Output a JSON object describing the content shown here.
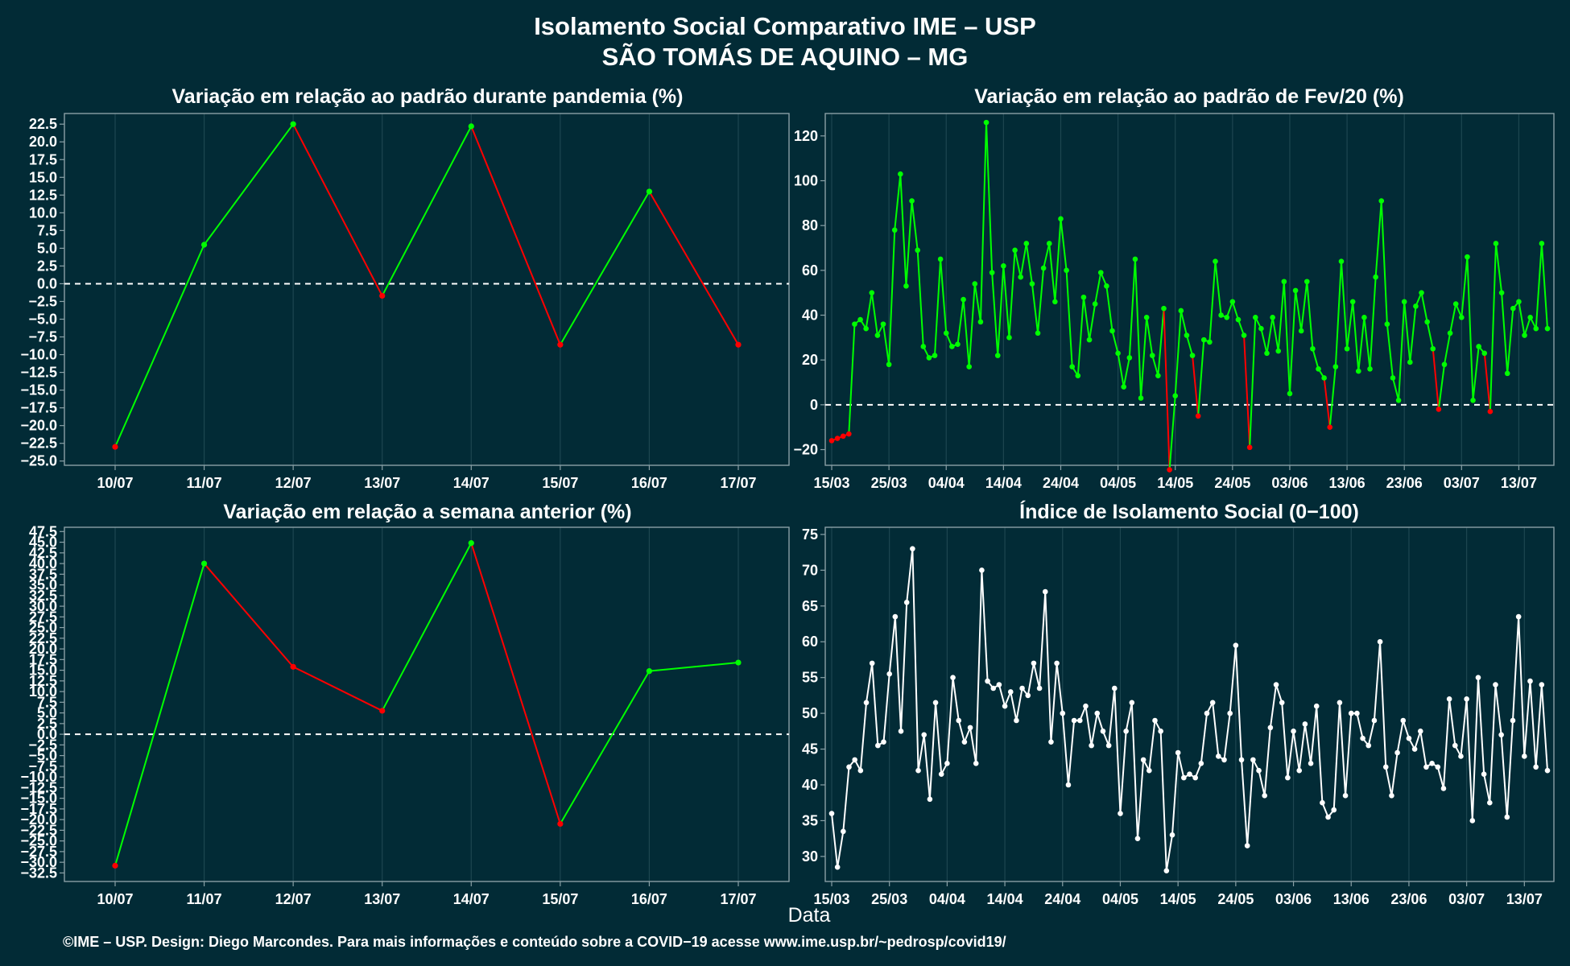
{
  "title_line1": "Isolamento Social Comparativo IME – USP",
  "title_line2": "SÃO TOMÁS DE AQUINO – MG",
  "xlabel": "Data",
  "footer": "©IME – USP. Design: Diego Marcondes. Para mais informações e conteúdo sobre a COVID−19 acesse www.ime.usp.br/~pedrosp/covid19/",
  "colors": {
    "background": "#022b36",
    "grid": "#1d4650",
    "axis": "#8aa0a6",
    "up": "#00ff00",
    "down": "#ff0000",
    "index": "#ffffff",
    "zero": "#ffffff"
  },
  "chart_data": [
    {
      "type": "line",
      "title": "Variação em relação ao padrão durante pandemia (%)",
      "categories": [
        "10/07",
        "11/07",
        "12/07",
        "13/07",
        "14/07",
        "15/07",
        "16/07",
        "17/07"
      ],
      "values": [
        -23.0,
        5.5,
        22.5,
        -1.7,
        22.2,
        -8.6,
        13.0,
        -8.6
      ],
      "ylim": [
        -25.6,
        24.0
      ],
      "yticks": [
        "−25.0",
        "−22.5",
        "−20.0",
        "−17.5",
        "−15.0",
        "−12.5",
        "−10.0",
        "−7.5",
        "−5.0",
        "−2.5",
        "0.0",
        "2.5",
        "5.0",
        "7.5",
        "10.0",
        "12.5",
        "15.0",
        "17.5",
        "20.0",
        "22.5"
      ],
      "coloring": "green when rising, red when falling",
      "zero_line": true
    },
    {
      "type": "line",
      "title": "Variação em relação ao padrão de Fev/20 (%)",
      "x_tick_labels": [
        "15/03",
        "25/03",
        "04/04",
        "14/04",
        "24/04",
        "04/05",
        "14/05",
        "24/05",
        "03/06",
        "13/06",
        "23/06",
        "03/07",
        "13/07"
      ],
      "x_start": "15/03",
      "values": [
        -16,
        -15,
        -14,
        -13,
        36,
        38,
        34,
        50,
        31,
        36,
        18,
        78,
        103,
        53,
        91,
        69,
        26,
        21,
        22,
        65,
        32,
        26,
        27,
        47,
        17,
        54,
        37,
        126,
        59,
        22,
        62,
        30,
        69,
        57,
        72,
        54,
        32,
        61,
        72,
        46,
        83,
        60,
        17,
        13,
        48,
        29,
        45,
        59,
        53,
        33,
        23,
        8,
        21,
        65,
        3,
        39,
        22,
        13,
        43,
        -29,
        4,
        42,
        31,
        22,
        -5,
        29,
        28,
        64,
        40,
        39,
        46,
        38,
        31,
        -19,
        39,
        34,
        23,
        39,
        24,
        55,
        5,
        51,
        33,
        55,
        25,
        16,
        12,
        -10,
        17,
        64,
        25,
        46,
        15,
        39,
        16,
        57,
        91,
        36,
        12,
        2,
        46,
        19,
        44,
        50,
        37,
        25,
        -2,
        18,
        32,
        45,
        39,
        66,
        2,
        26,
        23,
        -3,
        72,
        50,
        14,
        43,
        46,
        31,
        39,
        34,
        72,
        34
      ],
      "ylim": [
        -27,
        130
      ],
      "yticks": [
        "−20",
        "0",
        "20",
        "40",
        "60",
        "80",
        "100",
        "120"
      ],
      "coloring": "red segments where values drop to negative, otherwise green",
      "zero_line": true
    },
    {
      "type": "line",
      "title": "Variação em relação a semana anterior (%)",
      "categories": [
        "10/07",
        "11/07",
        "12/07",
        "13/07",
        "14/07",
        "15/07",
        "16/07",
        "17/07"
      ],
      "values": [
        -30.8,
        40.0,
        15.8,
        5.5,
        44.8,
        -21.0,
        14.8,
        16.8
      ],
      "ylim": [
        -34.5,
        48.5
      ],
      "yticks": [
        "−32.5",
        "−30.0",
        "−27.5",
        "−25.0",
        "−22.5",
        "−20.0",
        "−17.5",
        "−15.0",
        "−12.5",
        "−10.0",
        "−7.5",
        "−5.0",
        "−2.5",
        "0.0",
        "2.5",
        "5.0",
        "7.5",
        "10.0",
        "12.5",
        "15.0",
        "17.5",
        "20.0",
        "22.5",
        "25.0",
        "27.5",
        "30.0",
        "32.5",
        "35.0",
        "37.5",
        "40.0",
        "42.5",
        "45.0",
        "47.5"
      ],
      "coloring": "green when rising, red when falling",
      "zero_line": true
    },
    {
      "type": "line",
      "title": "Índice de Isolamento Social (0−100)",
      "x_tick_labels": [
        "15/03",
        "25/03",
        "04/04",
        "14/04",
        "24/04",
        "04/05",
        "14/05",
        "24/05",
        "03/06",
        "13/06",
        "23/06",
        "03/07",
        "13/07"
      ],
      "x_start": "15/03",
      "values": [
        36,
        28.5,
        33.5,
        42.5,
        43.5,
        42,
        51.5,
        57,
        45.5,
        46,
        55.5,
        63.5,
        47.5,
        65.5,
        73,
        42,
        47,
        38,
        51.5,
        41.5,
        43,
        55,
        49,
        46,
        48,
        43,
        70,
        54.5,
        53.5,
        54,
        51,
        53,
        49,
        53.5,
        52.5,
        57,
        53.5,
        67,
        46,
        57,
        50,
        40,
        49,
        49,
        51,
        45.5,
        50,
        47.5,
        45.5,
        53.5,
        36,
        47.5,
        51.5,
        32.5,
        43.5,
        42,
        49,
        47.5,
        28,
        33,
        44.5,
        41,
        41.5,
        41,
        43,
        50,
        51.5,
        44,
        43.5,
        50,
        59.5,
        43.5,
        31.5,
        43.5,
        42,
        38.5,
        48,
        54,
        51.5,
        41,
        47.5,
        42,
        48.5,
        43,
        51,
        37.5,
        35.5,
        36.5,
        51.5,
        38.5,
        50,
        50,
        46.5,
        45.5,
        49,
        60,
        42.5,
        38.5,
        44.5,
        49,
        46.5,
        45,
        47.5,
        42.5,
        43,
        42.5,
        39.5,
        52,
        45.5,
        44,
        52,
        35,
        55,
        41.5,
        37.5,
        54,
        47,
        35.5,
        49,
        63.5,
        44,
        54.5,
        42.5,
        54,
        42
      ],
      "ylim": [
        26.5,
        76
      ],
      "yticks": [
        "30",
        "35",
        "40",
        "45",
        "50",
        "55",
        "60",
        "65",
        "70",
        "75"
      ],
      "coloring": "white"
    }
  ]
}
